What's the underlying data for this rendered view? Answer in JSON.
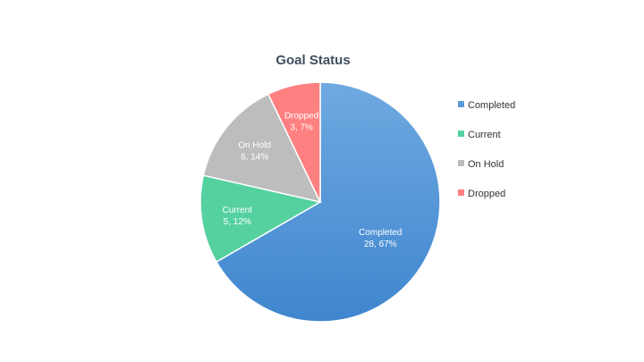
{
  "chart_data": {
    "type": "pie",
    "title": "Goal Status",
    "legend_position": "right",
    "slices": [
      {
        "label": "Completed",
        "value": 28,
        "percent": "67%",
        "color": "#5b9bd5",
        "value_text": "28, 67%"
      },
      {
        "label": "Current",
        "value": 5,
        "percent": "12%",
        "color": "#55d1a0",
        "value_text": "5, 12%"
      },
      {
        "label": "On Hold",
        "value": 6,
        "percent": "14%",
        "color": "#bdbdbd",
        "value_text": "6, 14%"
      },
      {
        "label": "Dropped",
        "value": 3,
        "percent": "7%",
        "color": "#ff8080",
        "value_text": "3,  7%"
      }
    ]
  }
}
